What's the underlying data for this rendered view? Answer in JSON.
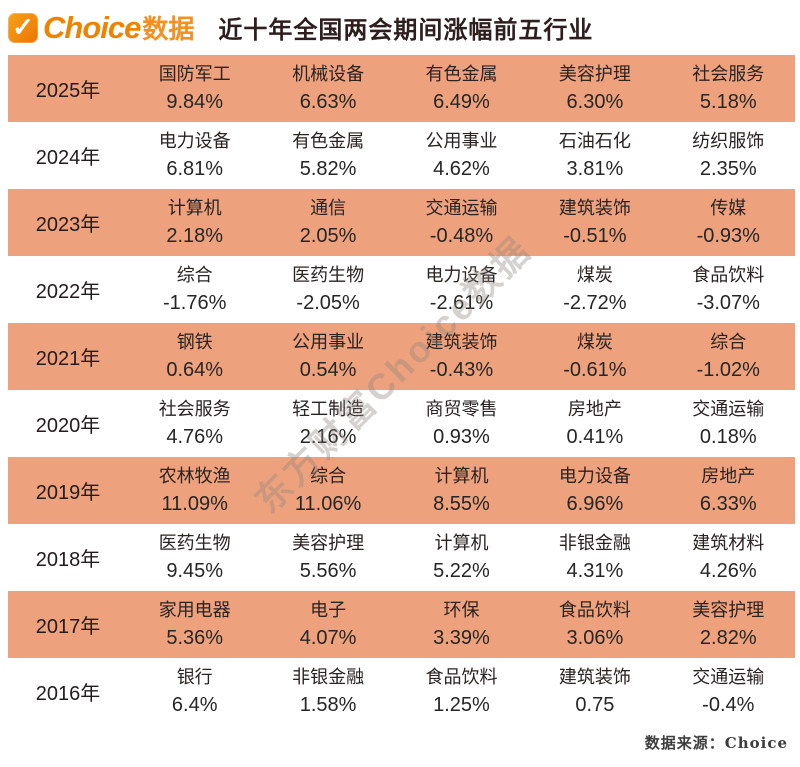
{
  "header": {
    "logo": {
      "icon_glyph": "✓",
      "brand": "Choice",
      "suffix": "数据"
    },
    "title": "近十年全国两会期间涨幅前五行业"
  },
  "watermark": {
    "text": "东方财富Choice数据"
  },
  "footer": {
    "source": "数据来源：Choice"
  },
  "colors": {
    "row_highlight": "#eda27d",
    "brand_orange": "#ee8201",
    "title_text": "#2e1e1e",
    "body_text": "#262626"
  },
  "chart_data": {
    "type": "table",
    "title": "近十年全国两会期间涨幅前五行业",
    "note": "Top-5 industry gains during the Two Sessions period, 2016-2025"
  },
  "table": {
    "rows": [
      {
        "year": "2025年",
        "highlight": true,
        "entries": [
          {
            "name": "国防军工",
            "value": "9.84%"
          },
          {
            "name": "机械设备",
            "value": "6.63%"
          },
          {
            "name": "有色金属",
            "value": "6.49%"
          },
          {
            "name": "美容护理",
            "value": "6.30%"
          },
          {
            "name": "社会服务",
            "value": "5.18%"
          }
        ]
      },
      {
        "year": "2024年",
        "highlight": false,
        "entries": [
          {
            "name": "电力设备",
            "value": "6.81%"
          },
          {
            "name": "有色金属",
            "value": "5.82%"
          },
          {
            "name": "公用事业",
            "value": "4.62%"
          },
          {
            "name": "石油石化",
            "value": "3.81%"
          },
          {
            "name": "纺织服饰",
            "value": "2.35%"
          }
        ]
      },
      {
        "year": "2023年",
        "highlight": true,
        "entries": [
          {
            "name": "计算机",
            "value": "2.18%"
          },
          {
            "name": "通信",
            "value": "2.05%"
          },
          {
            "name": "交通运输",
            "value": "-0.48%"
          },
          {
            "name": "建筑装饰",
            "value": "-0.51%"
          },
          {
            "name": "传媒",
            "value": "-0.93%"
          }
        ]
      },
      {
        "year": "2022年",
        "highlight": false,
        "entries": [
          {
            "name": "综合",
            "value": "-1.76%"
          },
          {
            "name": "医药生物",
            "value": "-2.05%"
          },
          {
            "name": "电力设备",
            "value": "-2.61%"
          },
          {
            "name": "煤炭",
            "value": "-2.72%"
          },
          {
            "name": "食品饮料",
            "value": "-3.07%"
          }
        ]
      },
      {
        "year": "2021年",
        "highlight": true,
        "entries": [
          {
            "name": "钢铁",
            "value": "0.64%"
          },
          {
            "name": "公用事业",
            "value": "0.54%"
          },
          {
            "name": "建筑装饰",
            "value": "-0.43%"
          },
          {
            "name": "煤炭",
            "value": "-0.61%"
          },
          {
            "name": "综合",
            "value": "-1.02%"
          }
        ]
      },
      {
        "year": "2020年",
        "highlight": false,
        "entries": [
          {
            "name": "社会服务",
            "value": "4.76%"
          },
          {
            "name": "轻工制造",
            "value": "2.16%"
          },
          {
            "name": "商贸零售",
            "value": "0.93%"
          },
          {
            "name": "房地产",
            "value": "0.41%"
          },
          {
            "name": "交通运输",
            "value": "0.18%"
          }
        ]
      },
      {
        "year": "2019年",
        "highlight": true,
        "entries": [
          {
            "name": "农林牧渔",
            "value": "11.09%"
          },
          {
            "name": "综合",
            "value": "11.06%"
          },
          {
            "name": "计算机",
            "value": "8.55%"
          },
          {
            "name": "电力设备",
            "value": "6.96%"
          },
          {
            "name": "房地产",
            "value": "6.33%"
          }
        ]
      },
      {
        "year": "2018年",
        "highlight": false,
        "entries": [
          {
            "name": "医药生物",
            "value": "9.45%"
          },
          {
            "name": "美容护理",
            "value": "5.56%"
          },
          {
            "name": "计算机",
            "value": "5.22%"
          },
          {
            "name": "非银金融",
            "value": "4.31%"
          },
          {
            "name": "建筑材料",
            "value": "4.26%"
          }
        ]
      },
      {
        "year": "2017年",
        "highlight": true,
        "entries": [
          {
            "name": "家用电器",
            "value": "5.36%"
          },
          {
            "name": "电子",
            "value": "4.07%"
          },
          {
            "name": "环保",
            "value": "3.39%"
          },
          {
            "name": "食品饮料",
            "value": "3.06%"
          },
          {
            "name": "美容护理",
            "value": "2.82%"
          }
        ]
      },
      {
        "year": "2016年",
        "highlight": false,
        "entries": [
          {
            "name": "银行",
            "value": "6.4%"
          },
          {
            "name": "非银金融",
            "value": "1.58%"
          },
          {
            "name": "食品饮料",
            "value": "1.25%"
          },
          {
            "name": "建筑装饰",
            "value": "0.75"
          },
          {
            "name": "交通运输",
            "value": "-0.4%"
          }
        ]
      }
    ]
  }
}
